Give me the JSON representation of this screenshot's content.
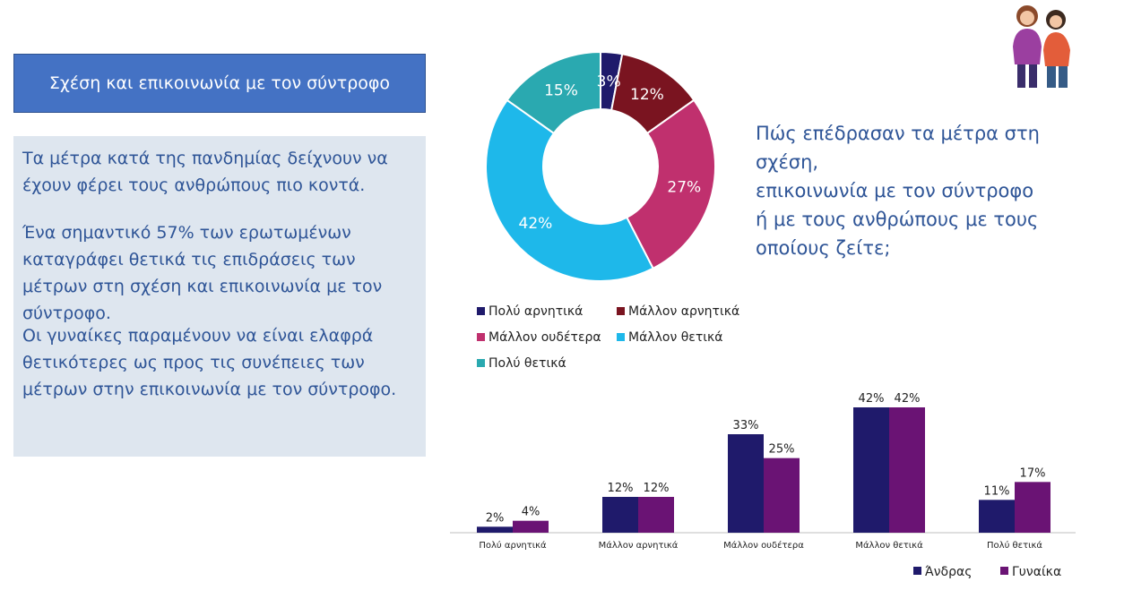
{
  "header": {
    "title": "Σχέση και επικοινωνία με τον σύντροφο"
  },
  "panel": {
    "p1": "Τα μέτρα κατά της πανδημίας δείχνουν να έχουν φέρει τους ανθρώπους πιο κοντά.",
    "p2": "Ένα σημαντικό 57% των ερωτωμένων καταγράφει θετικά τις επιδράσεις των μέτρων στη σχέση και  επικοινωνία με τον σύντροφο.",
    "p3": "Οι γυναίκες παραμένουν να είναι ελαφρά θετικότερες ως προς τις συνέπειες των μέτρων στην επικοινωνία με τον σύντροφο."
  },
  "question": "Πώς επέδρασαν τα μέτρα στη σχέση,\nεπικοινωνία με τον σύντροφο\nή με τους ανθρώπους με τους\nοποίους  ζείτε;",
  "chart_data": [
    {
      "type": "pie",
      "donut": true,
      "categories": [
        "Πολύ αρνητικά",
        "Μάλλον αρνητικά",
        "Μάλλον ουδέτερα",
        "Μάλλον θετικά",
        "Πολύ θετικά"
      ],
      "values": [
        3,
        12,
        27,
        42,
        15
      ],
      "labels": [
        "3%",
        "12%",
        "27%",
        "42%",
        "15%"
      ],
      "colors": [
        "#1f1a6b",
        "#7a1420",
        "#c0306e",
        "#1eb8ea",
        "#2aa9b0"
      ],
      "legend_position": "bottom"
    },
    {
      "type": "bar",
      "categories": [
        "Πολύ αρνητικά",
        "Μάλλον αρνητικά",
        "Μάλλον ουδέτερα",
        "Μάλλον θετικά",
        "Πολύ θετικά"
      ],
      "series": [
        {
          "name": "Άνδρας",
          "values": [
            2,
            12,
            33,
            42,
            11
          ],
          "labels": [
            "2%",
            "12%",
            "33%",
            "42%",
            "11%"
          ],
          "color": "#1f1a6b"
        },
        {
          "name": "Γυναίκα",
          "values": [
            4,
            12,
            25,
            42,
            17
          ],
          "labels": [
            "4%",
            "12%",
            "25%",
            "42%",
            "17%"
          ],
          "color": "#6a1374"
        }
      ],
      "ylim": [
        0,
        45
      ],
      "legend_position": "bottom-right"
    }
  ]
}
